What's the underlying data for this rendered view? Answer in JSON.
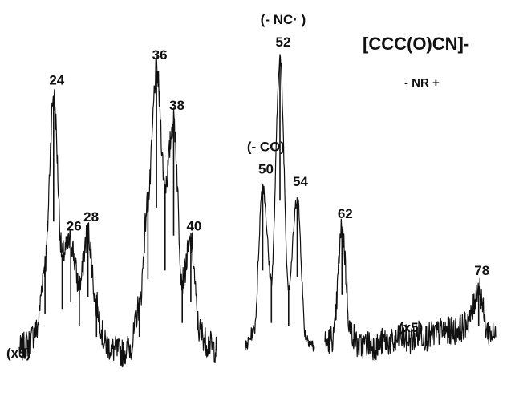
{
  "chart_data": {
    "type": "line",
    "title": "[CCC(O)CN]-",
    "subtitle": "- NR +",
    "xlabel": "",
    "ylabel": "",
    "grid": false,
    "ylim": [
      0,
      100
    ],
    "segments": [
      {
        "name": "",
        "magnification": "(x5)",
        "x": [
          20,
          21,
          22,
          23,
          24,
          25,
          26,
          27,
          28,
          29,
          30,
          31,
          32,
          33,
          34,
          35,
          36,
          37,
          38,
          39,
          40,
          41,
          42,
          43
        ],
        "y": [
          8,
          10,
          14,
          35,
          88,
          38,
          42,
          28,
          45,
          22,
          10,
          8,
          7,
          9,
          22,
          55,
          96,
          60,
          80,
          30,
          42,
          14,
          10,
          8
        ]
      },
      {
        "name": "",
        "magnification": "",
        "x": [
          48,
          49,
          50,
          51,
          52,
          53,
          54,
          55,
          56
        ],
        "y": [
          9,
          14,
          60,
          30,
          100,
          28,
          56,
          12,
          9
        ]
      },
      {
        "name": "",
        "magnification": "(x5)",
        "x": [
          60,
          61,
          62,
          63,
          64,
          65,
          66,
          67,
          68,
          69,
          70,
          71,
          72,
          73,
          74,
          75,
          76,
          77,
          78,
          79,
          80
        ],
        "y": [
          10,
          12,
          46,
          14,
          9,
          10,
          9,
          11,
          10,
          12,
          11,
          13,
          12,
          13,
          14,
          14,
          15,
          18,
          28,
          14,
          12
        ]
      }
    ],
    "peak_labels": [
      {
        "text": "24",
        "x": 24,
        "y": 88
      },
      {
        "text": "26",
        "x": 26,
        "y": 42
      },
      {
        "text": "28",
        "x": 28,
        "y": 45
      },
      {
        "text": "36",
        "x": 36,
        "y": 96
      },
      {
        "text": "38",
        "x": 38,
        "y": 80
      },
      {
        "text": "40",
        "x": 40,
        "y": 42
      },
      {
        "text": "50",
        "x": 50,
        "y": 60
      },
      {
        "text": "52",
        "x": 52,
        "y": 100
      },
      {
        "text": "54",
        "x": 54,
        "y": 56
      },
      {
        "text": "62",
        "x": 62,
        "y": 46
      },
      {
        "text": "78",
        "x": 78,
        "y": 28
      }
    ],
    "annotations": [
      {
        "text": "(- CO)",
        "peak": "50"
      },
      {
        "text": "(- NC· )",
        "peak": "52"
      },
      {
        "text": "(x5)",
        "segment": 0
      },
      {
        "text": "(x5)",
        "segment": 2
      }
    ]
  }
}
